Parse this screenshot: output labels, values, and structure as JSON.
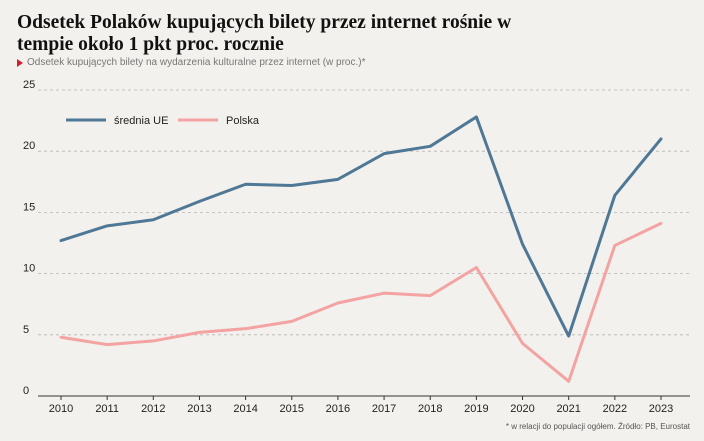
{
  "header": {
    "title": "Odsetek Polaków kupujących bilety przez internet rośnie w tempie około 1 pkt proc. rocznie",
    "subtitle": "Odsetek kupujących bilety na wydarzenia kulturalne przez internet (w proc.)*"
  },
  "footer": {
    "source": "* w relacji do populacji ogółem. Źródło: PB, Eurostat"
  },
  "colors": {
    "background": "#f3f1ed",
    "eu": "#4f7896",
    "pl": "#f3a3a1",
    "accent": "#d4202c",
    "grid": "#b5b5b5"
  },
  "chart_data": {
    "type": "line",
    "title": "Odsetek Polaków kupujących bilety przez internet rośnie w tempie około 1 pkt proc. rocznie",
    "subtitle": "Odsetek kupujących bilety na wydarzenia kulturalne przez internet (w proc.)*",
    "x": [
      "2010",
      "2011",
      "2012",
      "2013",
      "2014",
      "2015",
      "2016",
      "2017",
      "2018",
      "2019",
      "2020",
      "2021",
      "2022",
      "2023"
    ],
    "ylim": [
      0,
      25
    ],
    "yticks": [
      0,
      5,
      10,
      15,
      20,
      25
    ],
    "grid": true,
    "legend_position": "top-left",
    "series": [
      {
        "name": "średnia UE",
        "color": "#4f7896",
        "values": [
          12.7,
          13.9,
          14.4,
          15.9,
          17.3,
          17.2,
          17.7,
          19.8,
          20.4,
          22.8,
          12.4,
          4.9,
          16.4,
          21.0
        ]
      },
      {
        "name": "Polska",
        "color": "#f3a3a1",
        "values": [
          4.8,
          4.2,
          4.5,
          5.2,
          5.5,
          6.1,
          7.6,
          8.4,
          8.2,
          10.5,
          4.3,
          1.2,
          12.3,
          14.1
        ]
      }
    ]
  }
}
